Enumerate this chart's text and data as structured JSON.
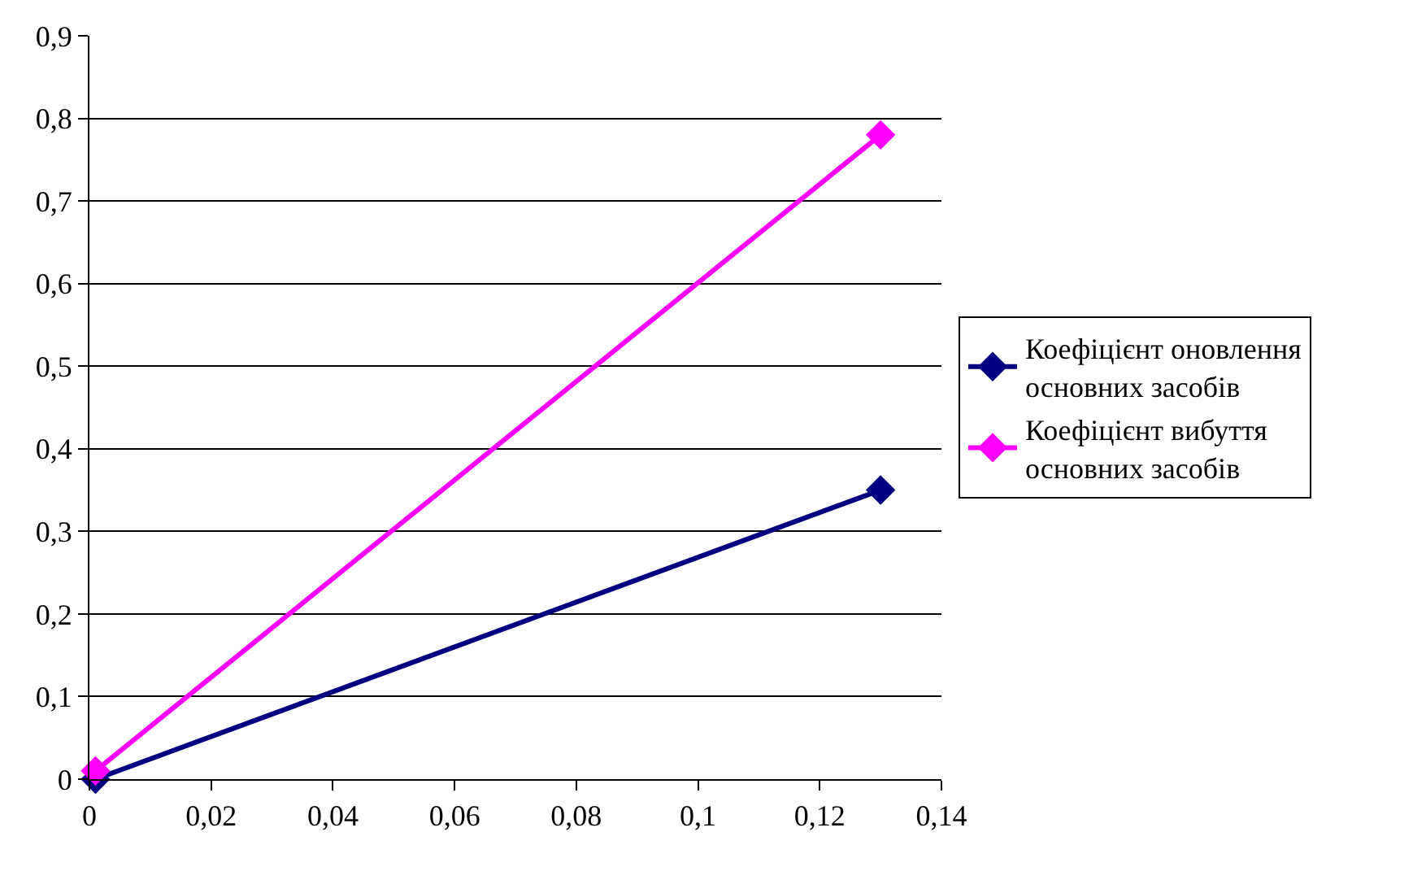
{
  "chart_data": {
    "type": "line",
    "x": [
      0.001,
      0.13
    ],
    "series": [
      {
        "name": "Коефіцієнт оновлення\nосновних засобів",
        "color": "#000080",
        "values": [
          0,
          0.35
        ]
      },
      {
        "name": "Коефіцієнт вибуття\nосновних засобів",
        "color": "#ff00ff",
        "values": [
          0.01,
          0.78
        ]
      }
    ],
    "xlim": [
      0,
      0.14
    ],
    "xticks": [
      0,
      {
        "value": 0.02,
        "label": "0,02"
      },
      {
        "value": 0.04,
        "label": "0,04"
      },
      {
        "value": 0.06,
        "label": "0,06"
      },
      {
        "value": 0.08,
        "label": "0,08"
      },
      {
        "value": 0.1,
        "label": "0,1"
      },
      {
        "value": 0.12,
        "label": "0,12"
      },
      {
        "value": 0.14,
        "label": "0,14"
      }
    ],
    "ylim": [
      0,
      0.9
    ],
    "yticks": [
      0,
      {
        "value": 0.1,
        "label": "0,1"
      },
      {
        "value": 0.2,
        "label": "0,2"
      },
      {
        "value": 0.3,
        "label": "0,3"
      },
      {
        "value": 0.4,
        "label": "0,4"
      },
      {
        "value": 0.5,
        "label": "0,5"
      },
      {
        "value": 0.6,
        "label": "0,6"
      },
      {
        "value": 0.7,
        "label": "0,7"
      },
      {
        "value": 0.8,
        "label": "0,8"
      },
      {
        "value": 0.9,
        "label": "0,9"
      }
    ],
    "grid": "y",
    "legend": "right",
    "marker": "diamond",
    "line_style": "solid"
  }
}
